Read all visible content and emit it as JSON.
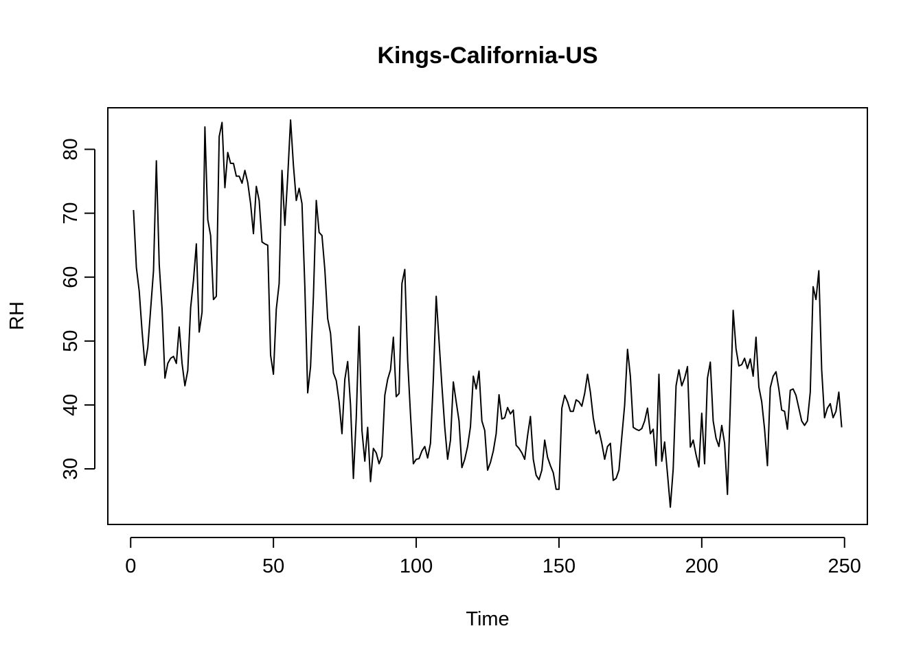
{
  "chart_data": {
    "type": "line",
    "title": "Kings-California-US",
    "xlabel": "Time",
    "ylabel": "RH",
    "xlim": [
      -8,
      258
    ],
    "ylim": [
      21.3,
      86.5
    ],
    "x_ticks": [
      0,
      50,
      100,
      150,
      200,
      250
    ],
    "y_ticks": [
      30,
      40,
      50,
      60,
      70,
      80
    ],
    "grid": false,
    "legend": "none",
    "line_color": "#000000",
    "series": [
      {
        "x_start": 1,
        "x_step": 1,
        "values": [
          70.5,
          61.5,
          57.8,
          51.5,
          46.2,
          49.0,
          55.0,
          61.0,
          78.2,
          62.0,
          55.0,
          44.2,
          46.5,
          47.3,
          47.6,
          46.5,
          52.2,
          46.5,
          43.0,
          45.4,
          55.2,
          59.5,
          65.2,
          51.4,
          54.5,
          83.5,
          69.0,
          66.5,
          56.5,
          57.0,
          82.0,
          84.2,
          74.0,
          79.5,
          77.8,
          77.8,
          75.8,
          75.8,
          74.7,
          76.7,
          74.8,
          71.5,
          66.8,
          74.2,
          72.0,
          65.5,
          65.2,
          65.0,
          47.8,
          44.8,
          55.0,
          59.0,
          76.7,
          68.1,
          75.7,
          84.6,
          77.5,
          72.0,
          73.9,
          71.5,
          58.5,
          41.9,
          46.0,
          57.0,
          72.0,
          67.0,
          66.5,
          61.2,
          53.5,
          51.2,
          45.0,
          43.8,
          40.5,
          35.5,
          44.0,
          46.8,
          40.0,
          28.5,
          38.0,
          52.3,
          36.0,
          31.2,
          36.5,
          28.0,
          33.2,
          32.5,
          30.8,
          32.0,
          41.5,
          44.0,
          45.5,
          50.6,
          41.3,
          41.8,
          59.0,
          61.2,
          47.0,
          38.5,
          30.8,
          31.5,
          31.6,
          32.8,
          33.5,
          31.7,
          34.0,
          44.0,
          57.0,
          50.0,
          43.0,
          36.5,
          31.5,
          34.5,
          43.6,
          40.5,
          37.5,
          30.2,
          31.5,
          33.5,
          36.6,
          44.5,
          42.5,
          45.3,
          37.5,
          36.0,
          29.8,
          31.0,
          32.8,
          35.5,
          41.6,
          37.8,
          38.0,
          39.6,
          38.6,
          39.2,
          33.7,
          33.2,
          32.5,
          31.5,
          35.2,
          38.2,
          31.5,
          29.0,
          28.3,
          29.8,
          34.5,
          31.8,
          30.5,
          29.4,
          26.8,
          26.8,
          39.5,
          41.5,
          40.5,
          39.0,
          39.0,
          40.8,
          40.5,
          39.8,
          41.8,
          44.8,
          42.0,
          38.0,
          35.5,
          36.0,
          34.0,
          31.5,
          33.5,
          34.0,
          28.2,
          28.5,
          29.8,
          35.0,
          40.0,
          48.7,
          44.5,
          36.5,
          36.2,
          36.0,
          36.3,
          37.5,
          39.5,
          35.5,
          36.2,
          30.5,
          44.8,
          31.2,
          34.2,
          29.2,
          24.0,
          30.0,
          43.0,
          45.5,
          43.0,
          44.2,
          46.0,
          33.4,
          34.5,
          32.2,
          30.3,
          38.7,
          30.8,
          44.2,
          46.7,
          37.5,
          34.8,
          33.5,
          36.8,
          34.0,
          26.0,
          40.0,
          54.8,
          48.8,
          46.1,
          46.3,
          47.3,
          45.7,
          47.2,
          44.5,
          50.6,
          42.8,
          40.5,
          36.2,
          30.5,
          42.7,
          44.5,
          45.2,
          42.5,
          39.2,
          39.0,
          36.2,
          42.3,
          42.5,
          41.5,
          39.5,
          37.5,
          36.8,
          37.5,
          42.0,
          58.5,
          56.5,
          61.0,
          45.5,
          38.0,
          39.5,
          40.2,
          38.0,
          39.0,
          42.0,
          36.5
        ]
      }
    ]
  }
}
